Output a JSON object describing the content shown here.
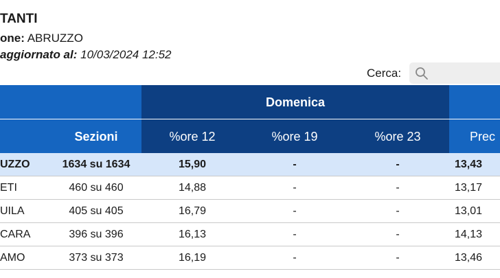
{
  "header": {
    "title": "TANTI",
    "region_label": "one:",
    "region_value": "ABRUZZO",
    "updated_label": "aggiornato al:",
    "updated_value": "10/03/2024 12:52"
  },
  "search": {
    "label": "Cerca:",
    "value": "",
    "placeholder": ""
  },
  "table": {
    "group_header": "Domenica",
    "columns": {
      "sezioni": "Sezioni",
      "ore12": "%ore 12",
      "ore19": "%ore 19",
      "ore23": "%ore 23",
      "prec": "Prec"
    },
    "rows": [
      {
        "name": "UZZO",
        "sezioni": "1634 su 1634",
        "ore12": "15,90",
        "ore19": "-",
        "ore23": "-",
        "prec": "13,43"
      },
      {
        "name": "ETI",
        "sezioni": "460 su 460",
        "ore12": "14,88",
        "ore19": "-",
        "ore23": "-",
        "prec": "13,17"
      },
      {
        "name": "UILA",
        "sezioni": "405 su 405",
        "ore12": "16,79",
        "ore19": "-",
        "ore23": "-",
        "prec": "13,01"
      },
      {
        "name": "CARA",
        "sezioni": "396 su 396",
        "ore12": "16,13",
        "ore19": "-",
        "ore23": "-",
        "prec": "14,13"
      },
      {
        "name": "AMO",
        "sezioni": "373 su 373",
        "ore12": "16,19",
        "ore19": "-",
        "ore23": "-",
        "prec": "13,46"
      }
    ]
  },
  "colors": {
    "header_blue": "#1565c0",
    "header_dark_blue": "#0d3f82",
    "total_row_bg": "#d6e6fa"
  }
}
